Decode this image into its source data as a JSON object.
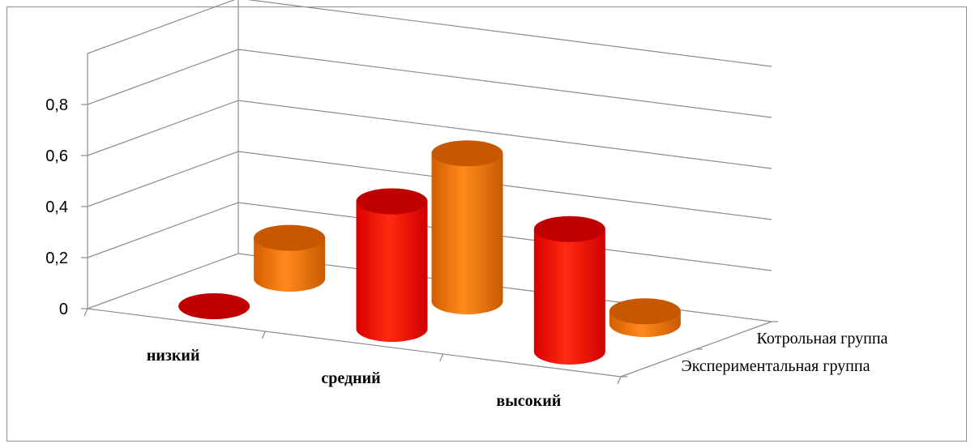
{
  "chart_data": {
    "type": "bar",
    "subtype": "3d-cylinder",
    "title": "",
    "categories": [
      "низкий",
      "средний",
      "высокий"
    ],
    "series": [
      {
        "name": "Котрольная группа",
        "values": [
          0.16,
          0.58,
          0.05
        ]
      },
      {
        "name": "Экспериментальная группа",
        "values": [
          0.0,
          0.5,
          0.48
        ]
      }
    ],
    "yticks": [
      "0",
      "0,2",
      "0,4",
      "0,6",
      "0,8"
    ],
    "ylim": [
      0,
      1.0
    ],
    "grid": true,
    "legend": "none",
    "colors": {
      "Котрольная группа": "#f0780e",
      "Экспериментальная группа": "#ff1a00"
    }
  }
}
